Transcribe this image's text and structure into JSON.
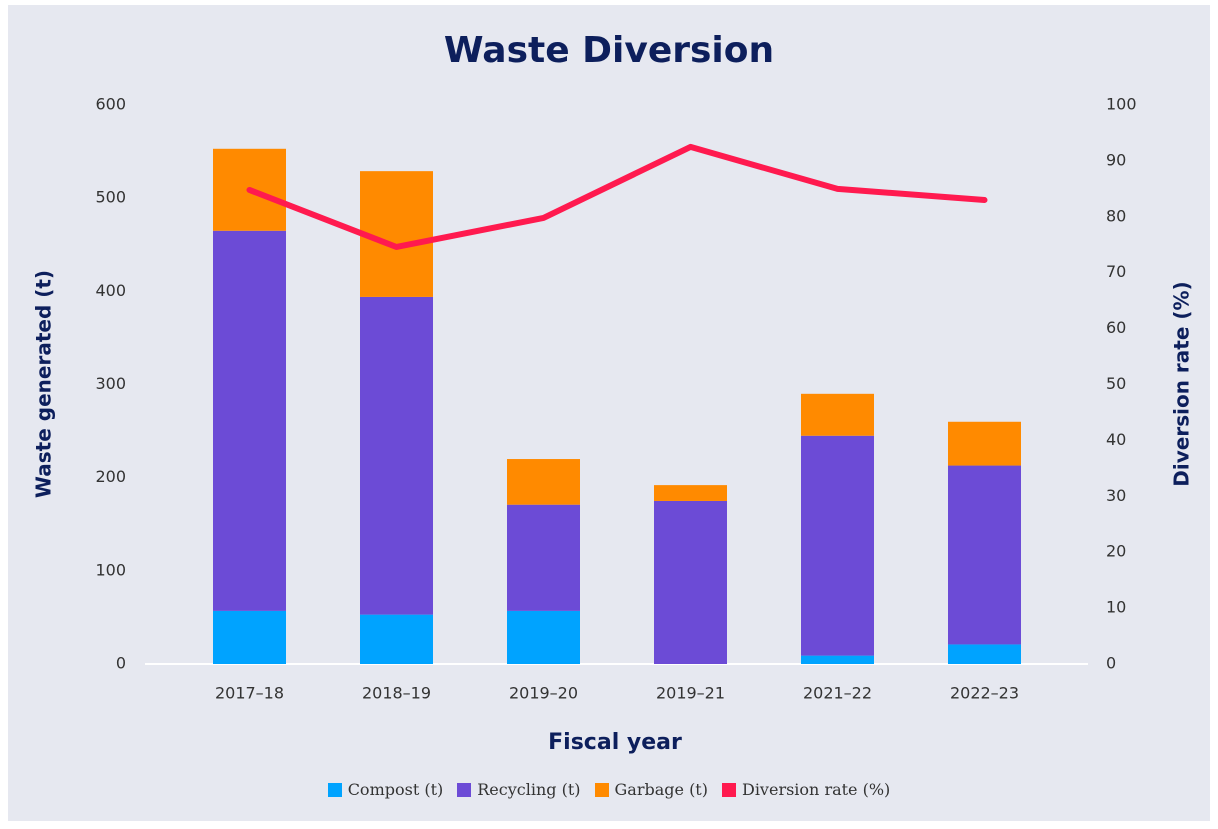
{
  "chart_data": {
    "type": "bar",
    "stacked": true,
    "title": "Waste Diversion",
    "x_label": "Fiscal year",
    "y_label": "Waste generated (t)",
    "y2_label": "Diversion rate (%)",
    "categories": [
      "2017–18",
      "2018–19",
      "2019–20",
      "2019–21",
      "2021–22",
      "2022–23"
    ],
    "series": [
      {
        "name": "Compost (t)",
        "type": "bar",
        "color": "#00a3ff",
        "values": [
          57,
          53,
          57,
          0,
          9,
          21
        ]
      },
      {
        "name": "Recycling (t)",
        "type": "bar",
        "color": "#6c4bd6",
        "values": [
          408,
          341,
          114,
          175,
          236,
          192
        ]
      },
      {
        "name": "Garbage (t)",
        "type": "bar",
        "color": "#ff8a00",
        "values": [
          88,
          135,
          49,
          17,
          45,
          47
        ]
      },
      {
        "name": "Diversion rate (%)",
        "type": "line",
        "axis": "y2",
        "color": "#ff1a4f",
        "values": [
          84.8,
          74.6,
          79.8,
          92.5,
          85,
          83
        ]
      }
    ],
    "ylim": [
      0,
      600
    ],
    "yticks": [
      0,
      100,
      200,
      300,
      400,
      500,
      600
    ],
    "y2lim": [
      0,
      100
    ],
    "y2ticks": [
      0,
      10,
      20,
      30,
      40,
      50,
      60,
      70,
      80,
      90,
      100
    ],
    "legend": "bottom"
  }
}
